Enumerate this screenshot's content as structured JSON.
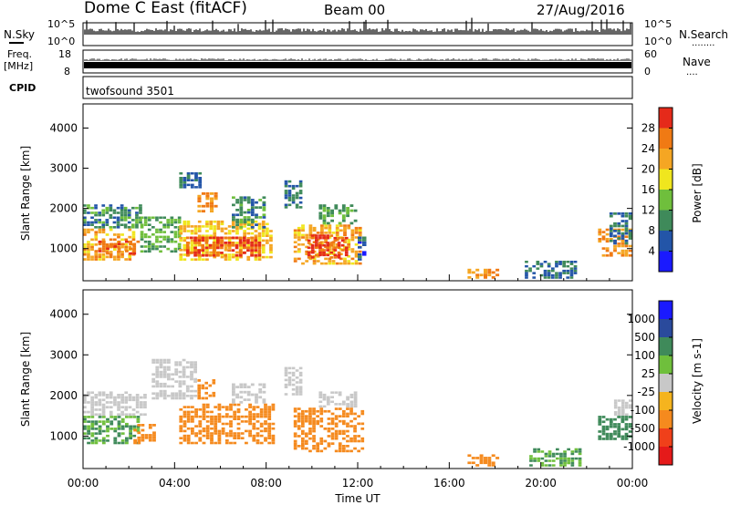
{
  "header": {
    "station": "Dome C East (fitACF)",
    "beam": "Beam 00",
    "date": "27/Aug/2016"
  },
  "status_rows": {
    "nsky_label": "N.Sky",
    "nsearch_label": "N.Search",
    "nsearch_dots": "........",
    "nsky_ticks": [
      "10^5",
      "10^0"
    ],
    "nsearch_ticks": [
      "10^5",
      "10^0"
    ],
    "freq_label_1": "Freq.",
    "freq_label_2": "[MHz]",
    "freq_ticks": [
      "18",
      "8"
    ],
    "nave_label": "Nave",
    "nave_dots": "....",
    "nave_ticks": [
      "60",
      "0"
    ],
    "cpid_label": "CPID",
    "cpid_value": "twofsound 3501"
  },
  "colors": {
    "power_scale": [
      "#1a1aff",
      "#2355a8",
      "#3f8a5a",
      "#6fbf3c",
      "#f0e61e",
      "#f5a623",
      "#f07a14",
      "#e52a1a"
    ],
    "velocity_scale": [
      "#e51a1a",
      "#f0401a",
      "#f58a1e",
      "#f5b41e",
      "#c8c8c8",
      "#6fbf3c",
      "#3f8a5a",
      "#2a4a9c",
      "#1a1aff"
    ]
  },
  "chart_data": [
    {
      "type": "heatmap",
      "name": "power",
      "ylabel": "Slant Range [km]",
      "yticks": [
        "1000",
        "2000",
        "3000",
        "4000"
      ],
      "ylim": [
        200,
        4600
      ],
      "xlim": [
        0,
        24
      ],
      "colorbar_label": "Power [dB]",
      "colorbar_ticks": [
        "4",
        "8",
        "12",
        "16",
        "20",
        "24",
        "28"
      ],
      "colorbar_range": [
        0,
        32
      ],
      "patches": [
        {
          "t0": 0.0,
          "t1": 2.3,
          "r0": 700,
          "r1": 1500,
          "value": 22
        },
        {
          "t0": 0.0,
          "t1": 2.6,
          "r0": 1500,
          "r1": 2100,
          "value": 10
        },
        {
          "t0": 0.5,
          "t1": 2.5,
          "r0": 850,
          "r1": 1200,
          "value": 28
        },
        {
          "t0": 2.5,
          "t1": 4.3,
          "r0": 900,
          "r1": 1800,
          "value": 12
        },
        {
          "t0": 4.2,
          "t1": 8.3,
          "r0": 700,
          "r1": 1700,
          "value": 20
        },
        {
          "t0": 4.5,
          "t1": 7.8,
          "r0": 800,
          "r1": 1300,
          "value": 28
        },
        {
          "t0": 4.2,
          "t1": 5.2,
          "r0": 2500,
          "r1": 2900,
          "value": 8
        },
        {
          "t0": 5.0,
          "t1": 5.9,
          "r0": 1900,
          "r1": 2400,
          "value": 24
        },
        {
          "t0": 6.5,
          "t1": 8.0,
          "r0": 1500,
          "r1": 2300,
          "value": 10
        },
        {
          "t0": 9.2,
          "t1": 12.2,
          "r0": 600,
          "r1": 1600,
          "value": 22
        },
        {
          "t0": 9.8,
          "t1": 11.6,
          "r0": 750,
          "r1": 1350,
          "value": 30
        },
        {
          "t0": 10.3,
          "t1": 12.0,
          "r0": 1600,
          "r1": 2100,
          "value": 12
        },
        {
          "t0": 8.8,
          "t1": 9.6,
          "r0": 2000,
          "r1": 2700,
          "value": 8
        },
        {
          "t0": 12.0,
          "t1": 12.4,
          "r0": 700,
          "r1": 1300,
          "value": 6
        },
        {
          "t0": 16.8,
          "t1": 18.2,
          "r0": 250,
          "r1": 500,
          "value": 24
        },
        {
          "t0": 19.3,
          "t1": 21.6,
          "r0": 250,
          "r1": 700,
          "value": 8
        },
        {
          "t0": 22.5,
          "t1": 24.0,
          "r0": 800,
          "r1": 1500,
          "value": 24
        },
        {
          "t0": 23.0,
          "t1": 24.0,
          "r0": 1100,
          "r1": 1900,
          "value": 8
        }
      ]
    },
    {
      "type": "heatmap",
      "name": "velocity",
      "ylabel": "Slant Range [km]",
      "yticks": [
        "1000",
        "2000",
        "3000",
        "4000"
      ],
      "ylim": [
        200,
        4600
      ],
      "xlim": [
        0,
        24
      ],
      "xticks": [
        "00:00",
        "04:00",
        "08:00",
        "12:00",
        "16:00",
        "20:00",
        "00:00"
      ],
      "xlabel": "Time UT",
      "colorbar_label": "Velocity [m s-1]",
      "colorbar_ticks": [
        "1000",
        "500",
        "100",
        "25",
        "-25",
        "-100",
        "-500",
        "-1000"
      ],
      "patches": [
        {
          "t0": 0.0,
          "t1": 2.5,
          "r0": 800,
          "r1": 1500,
          "value": 100
        },
        {
          "t0": 0.0,
          "t1": 2.8,
          "r0": 1500,
          "r1": 2100,
          "value": 0
        },
        {
          "t0": 2.2,
          "t1": 3.2,
          "r0": 800,
          "r1": 1300,
          "value": -300
        },
        {
          "t0": 3.0,
          "t1": 5.0,
          "r0": 1900,
          "r1": 2900,
          "value": 0
        },
        {
          "t0": 5.0,
          "t1": 5.8,
          "r0": 1900,
          "r1": 2400,
          "value": -300
        },
        {
          "t0": 4.2,
          "t1": 8.4,
          "r0": 800,
          "r1": 1800,
          "value": -300
        },
        {
          "t0": 6.5,
          "t1": 8.0,
          "r0": 1800,
          "r1": 2300,
          "value": 0
        },
        {
          "t0": 9.2,
          "t1": 12.3,
          "r0": 600,
          "r1": 1700,
          "value": -300
        },
        {
          "t0": 10.3,
          "t1": 12.0,
          "r0": 1700,
          "r1": 2100,
          "value": 0
        },
        {
          "t0": 8.8,
          "t1": 9.6,
          "r0": 2000,
          "r1": 2700,
          "value": 0
        },
        {
          "t0": 16.8,
          "t1": 18.2,
          "r0": 250,
          "r1": 550,
          "value": -150
        },
        {
          "t0": 19.5,
          "t1": 21.8,
          "r0": 250,
          "r1": 700,
          "value": 100
        },
        {
          "t0": 22.5,
          "t1": 24.0,
          "r0": 900,
          "r1": 1500,
          "value": 150
        },
        {
          "t0": 23.2,
          "t1": 24.0,
          "r0": 1500,
          "r1": 1900,
          "value": 0
        }
      ]
    }
  ]
}
